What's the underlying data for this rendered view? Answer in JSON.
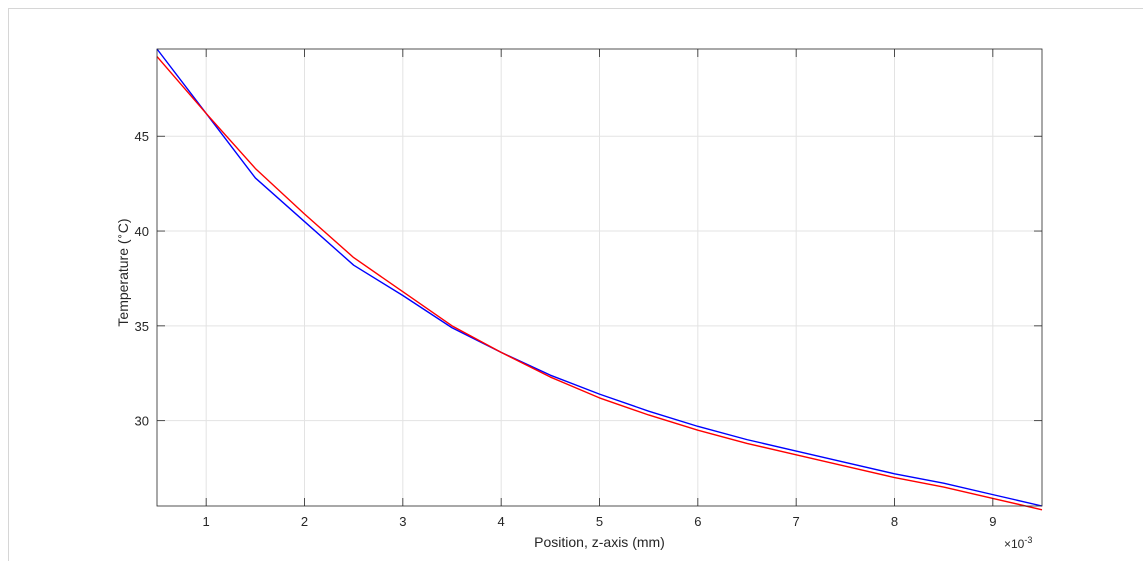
{
  "chart_data": {
    "type": "line",
    "xlabel": "Position, z-axis (mm)",
    "ylabel_main": "Temperature (",
    "ylabel_sup": "∘",
    "ylabel_tail": "C)",
    "x_multiplier_base": "×10",
    "x_multiplier_exp": "-3",
    "xlim": [
      0.5,
      9.5
    ],
    "ylim": [
      25.5,
      49.6
    ],
    "x_ticks": [
      1,
      2,
      3,
      4,
      5,
      6,
      7,
      8,
      9
    ],
    "x_tick_labels": [
      "1",
      "2",
      "3",
      "4",
      "5",
      "6",
      "7",
      "8",
      "9"
    ],
    "y_ticks": [
      30,
      35,
      40,
      45
    ],
    "y_tick_labels": [
      "30",
      "35",
      "40",
      "45"
    ],
    "grid": true,
    "series": [
      {
        "color": "#0000ff",
        "x": [
          0.5,
          1.0,
          1.5,
          2.0,
          2.5,
          3.0,
          3.5,
          4.0,
          4.5,
          5.0,
          5.5,
          6.0,
          6.5,
          7.0,
          7.5,
          8.0,
          8.5,
          9.0,
          9.5
        ],
        "y": [
          49.6,
          46.2,
          42.8,
          40.5,
          38.2,
          36.6,
          34.9,
          33.6,
          32.4,
          31.4,
          30.5,
          29.7,
          29.0,
          28.4,
          27.8,
          27.2,
          26.7,
          26.1,
          25.5
        ]
      },
      {
        "color": "#ff0000",
        "x": [
          0.5,
          1.0,
          1.5,
          2.0,
          2.5,
          3.0,
          3.5,
          4.0,
          4.5,
          5.0,
          5.5,
          6.0,
          6.5,
          7.0,
          7.5,
          8.0,
          8.5,
          9.0,
          9.5
        ],
        "y": [
          49.2,
          46.2,
          43.3,
          40.9,
          38.6,
          36.8,
          35.0,
          33.6,
          32.3,
          31.2,
          30.3,
          29.5,
          28.8,
          28.2,
          27.6,
          27.0,
          26.5,
          25.9,
          25.3
        ]
      }
    ]
  }
}
